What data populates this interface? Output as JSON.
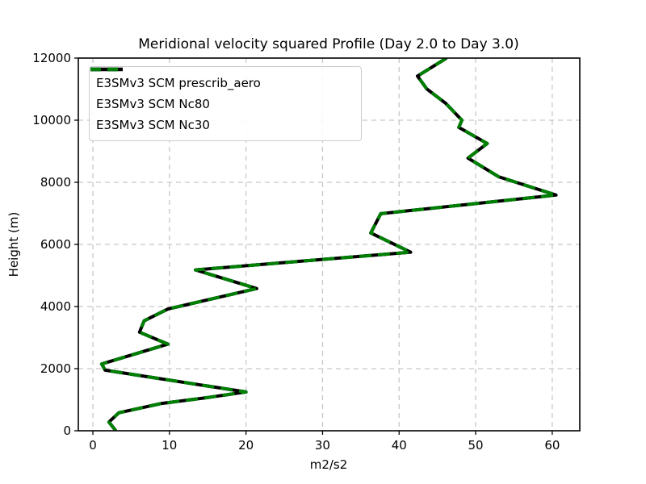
{
  "figure": {
    "title": "Meridional velocity squared Profile (Day 2.0 to Day 3.0)",
    "xlabel": "m2/s2",
    "ylabel": "Height (m)"
  },
  "legend": {
    "position": "upper left",
    "items": [
      {
        "label": "E3SMv3 SCM prescrib_aero",
        "color": "#0000ff",
        "linestyle": "dashed"
      },
      {
        "label": "E3SMv3 SCM Nc80",
        "color": "#000000",
        "linestyle": "solid"
      },
      {
        "label": "E3SMv3 SCM Nc30",
        "color": "#008000",
        "linestyle": "dashed"
      }
    ]
  },
  "chart_data": {
    "type": "line",
    "title": "Meridional velocity squared Profile (Day 2.0 to Day 3.0)",
    "xlabel": "m2/s2",
    "ylabel": "Height (m)",
    "xlim": [
      -1.9,
      63.6
    ],
    "ylim": [
      0,
      12000
    ],
    "xticks": [
      0,
      10,
      20,
      30,
      40,
      50,
      60
    ],
    "yticks": [
      0,
      2000,
      4000,
      6000,
      8000,
      10000,
      12000
    ],
    "grid": true,
    "grid_color": "#c8c8c8",
    "legend_position": "upper left",
    "note": "All three series are visually identical (curves overlap exactly); green dashes render on top of the black solid line, blue dashed line is hidden beneath.",
    "profile_m2s2": [
      3.0,
      2.1,
      3.4,
      9.0,
      15.0,
      20.0,
      1.6,
      1.15,
      9.8,
      6.1,
      6.7,
      9.8,
      21.4,
      13.4,
      41.5,
      36.3,
      37.6,
      60.5,
      53.0,
      49.0,
      51.5,
      47.8,
      48.2,
      46.1,
      43.6,
      42.4,
      46.2
    ],
    "profile_height_m": [
      0,
      280,
      580,
      880,
      1070,
      1250,
      1950,
      2150,
      2790,
      3175,
      3540,
      3920,
      4580,
      5180,
      5750,
      6370,
      6990,
      7590,
      8180,
      8780,
      9250,
      9770,
      10000,
      10540,
      11010,
      11420,
      12000
    ],
    "series": [
      {
        "name": "E3SMv3 SCM prescrib_aero",
        "color": "#0000ff",
        "linestyle": "dashed",
        "linewidth": 4,
        "values": "profile"
      },
      {
        "name": "E3SMv3 SCM Nc80",
        "color": "#000000",
        "linestyle": "solid",
        "linewidth": 4,
        "values": "profile"
      },
      {
        "name": "E3SMv3 SCM Nc30",
        "color": "#008000",
        "linestyle": "dashed",
        "linewidth": 4,
        "values": "profile"
      }
    ]
  }
}
